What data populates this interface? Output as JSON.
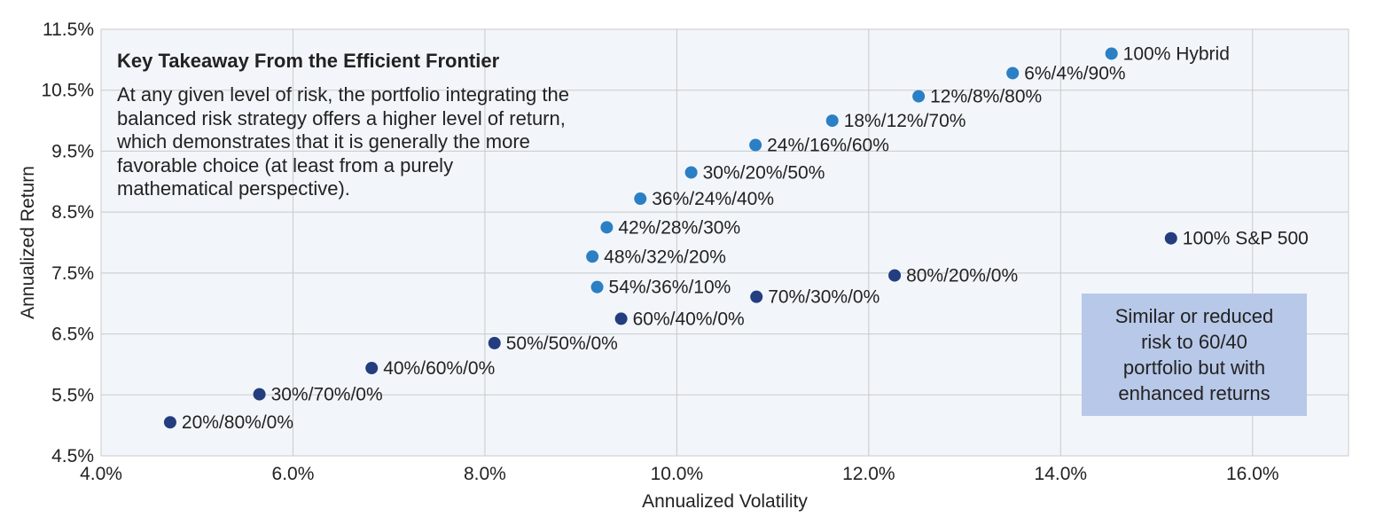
{
  "chart_data": {
    "type": "scatter",
    "title": "",
    "xlabel": "Annualized Volatility",
    "ylabel": "Annualized Return",
    "xlim": [
      4.0,
      17.0
    ],
    "ylim": [
      4.5,
      11.5
    ],
    "x_ticks": [
      4.0,
      6.0,
      8.0,
      10.0,
      12.0,
      14.0,
      16.0
    ],
    "x_tick_labels": [
      "4.0%",
      "6.0%",
      "8.0%",
      "10.0%",
      "12.0%",
      "14.0%",
      "16.0%"
    ],
    "y_ticks": [
      4.5,
      5.5,
      6.5,
      7.5,
      8.5,
      9.5,
      10.5,
      11.5
    ],
    "y_tick_labels": [
      "4.5%",
      "5.5%",
      "6.5%",
      "7.5%",
      "8.5%",
      "9.5%",
      "10.5%",
      "11.5%"
    ],
    "grid": true,
    "colors": {
      "hybrid": "#2b7fc4",
      "traditional": "#233d7f",
      "plot_bg": "#f2f6fa",
      "grid": "#c9c9c9"
    },
    "series": [
      {
        "group": "hybrid",
        "points": [
          {
            "label": "100% Hybrid",
            "x": 14.53,
            "y": 11.1
          },
          {
            "label": "6%/4%/90%",
            "x": 13.5,
            "y": 10.78
          },
          {
            "label": "12%/8%/80%",
            "x": 12.52,
            "y": 10.4
          },
          {
            "label": "18%/12%/70%",
            "x": 11.62,
            "y": 10.0
          },
          {
            "label": "24%/16%/60%",
            "x": 10.82,
            "y": 9.6
          },
          {
            "label": "30%/20%/50%",
            "x": 10.15,
            "y": 9.15
          },
          {
            "label": "36%/24%/40%",
            "x": 9.62,
            "y": 8.72
          },
          {
            "label": "42%/28%/30%",
            "x": 9.27,
            "y": 8.25
          },
          {
            "label": "48%/32%/20%",
            "x": 9.12,
            "y": 7.77
          },
          {
            "label": "54%/36%/10%",
            "x": 9.17,
            "y": 7.27
          }
        ]
      },
      {
        "group": "traditional",
        "points": [
          {
            "label": "100% S&P 500",
            "x": 15.15,
            "y": 8.07
          },
          {
            "label": "80%/20%/0%",
            "x": 12.27,
            "y": 7.46
          },
          {
            "label": "70%/30%/0%",
            "x": 10.83,
            "y": 7.11
          },
          {
            "label": "60%/40%/0%",
            "x": 9.42,
            "y": 6.75
          },
          {
            "label": "50%/50%/0%",
            "x": 8.1,
            "y": 6.35
          },
          {
            "label": "40%/60%/0%",
            "x": 6.82,
            "y": 5.94
          },
          {
            "label": "30%/70%/0%",
            "x": 5.65,
            "y": 5.51
          },
          {
            "label": "20%/80%/0%",
            "x": 4.72,
            "y": 5.05
          }
        ]
      }
    ],
    "annotations": {
      "takeaway_title": "Key Takeaway From the Efficient Frontier",
      "takeaway_lines": [
        "At any given level of risk, the portfolio integrating the",
        "balanced risk strategy offers a higher level of return,",
        "which demonstrates that it is generally the more",
        "favorable choice (at least from a purely",
        "mathematical perspective)."
      ],
      "callout_lines": [
        "Similar or reduced",
        "risk to 60/40",
        "portfolio but with",
        "enhanced returns"
      ]
    }
  }
}
